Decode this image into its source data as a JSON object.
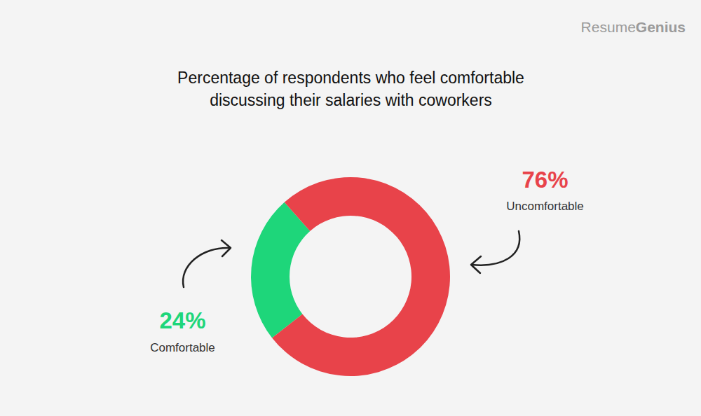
{
  "chart_data": {
    "type": "pie",
    "title": "Percentage of respondents who feel comfortable\ndiscussing their salaries with coworkers",
    "categories": [
      "Comfortable",
      "Uncomfortable"
    ],
    "values": [
      24,
      76
    ],
    "value_labels": [
      "24%",
      "76%"
    ],
    "colors": [
      "#1ed67a",
      "#e8434a"
    ],
    "data_labels": true
  },
  "brand": [
    "Resume",
    "Genius"
  ]
}
